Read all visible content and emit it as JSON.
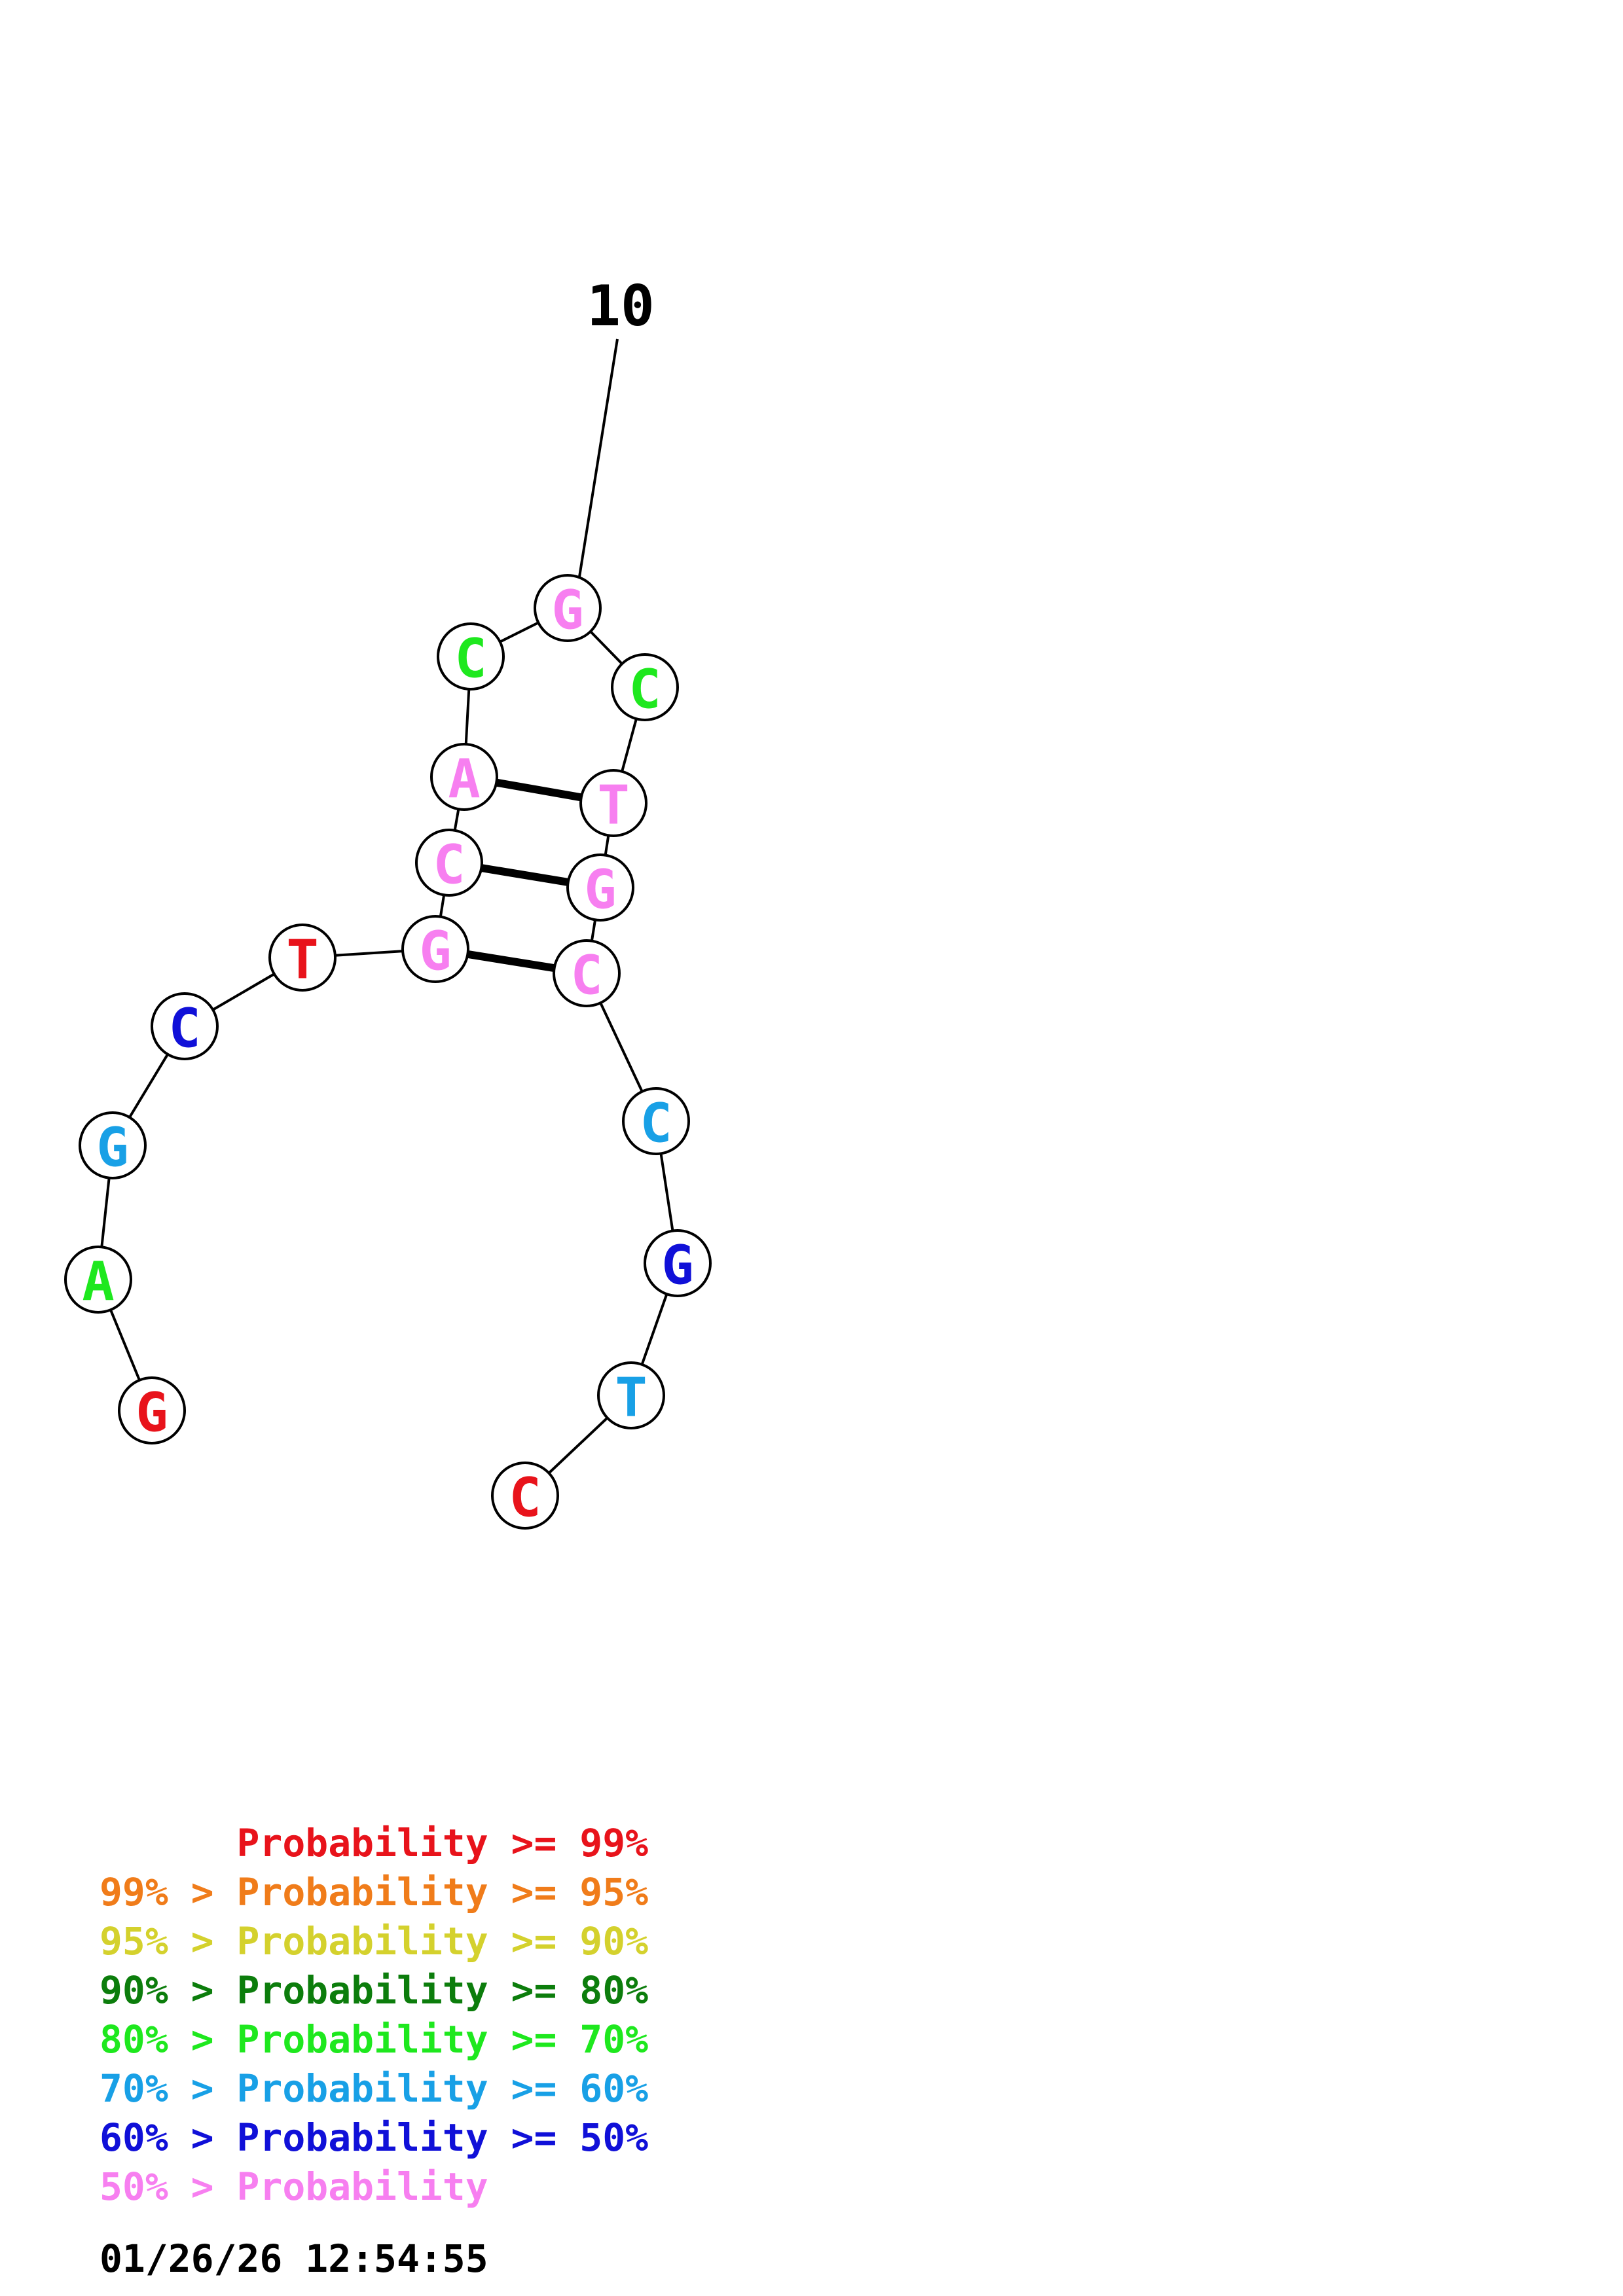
{
  "colors": {
    "p99": "#e8131b",
    "p95": "#f07c1a",
    "p90": "#d4d12d",
    "p80": "#0c7d0c",
    "p70": "#1ee81e",
    "p60": "#18a0e6",
    "p50": "#1010d8",
    "p0": "#f77ff0"
  },
  "structure": {
    "index_label": "10",
    "nucleotides": [
      {
        "base": "G",
        "prob": "p99"
      },
      {
        "base": "A",
        "prob": "p70"
      },
      {
        "base": "G",
        "prob": "p60"
      },
      {
        "base": "C",
        "prob": "p50"
      },
      {
        "base": "T",
        "prob": "p99"
      },
      {
        "base": "G",
        "prob": "p0"
      },
      {
        "base": "C",
        "prob": "p0"
      },
      {
        "base": "A",
        "prob": "p0"
      },
      {
        "base": "C",
        "prob": "p70"
      },
      {
        "base": "G",
        "prob": "p0"
      },
      {
        "base": "C",
        "prob": "p70"
      },
      {
        "base": "T",
        "prob": "p0"
      },
      {
        "base": "G",
        "prob": "p0"
      },
      {
        "base": "C",
        "prob": "p0"
      },
      {
        "base": "C",
        "prob": "p60"
      },
      {
        "base": "G",
        "prob": "p50"
      },
      {
        "base": "T",
        "prob": "p60"
      },
      {
        "base": "C",
        "prob": "p99"
      }
    ],
    "pairs": [
      [
        6,
        14
      ],
      [
        7,
        13
      ],
      [
        8,
        12
      ]
    ]
  },
  "legend": [
    {
      "text": "      Probability >= 99%",
      "prob": "p99"
    },
    {
      "text": "99% > Probability >= 95%",
      "prob": "p95"
    },
    {
      "text": "95% > Probability >= 90%",
      "prob": "p90"
    },
    {
      "text": "90% > Probability >= 80%",
      "prob": "p80"
    },
    {
      "text": "80% > Probability >= 70%",
      "prob": "p70"
    },
    {
      "text": "70% > Probability >= 60%",
      "prob": "p60"
    },
    {
      "text": "60% > Probability >= 50%",
      "prob": "p50"
    },
    {
      "text": "50% > Probability",
      "prob": "p0"
    }
  ],
  "timestamp": "01/26/26 12:54:55"
}
